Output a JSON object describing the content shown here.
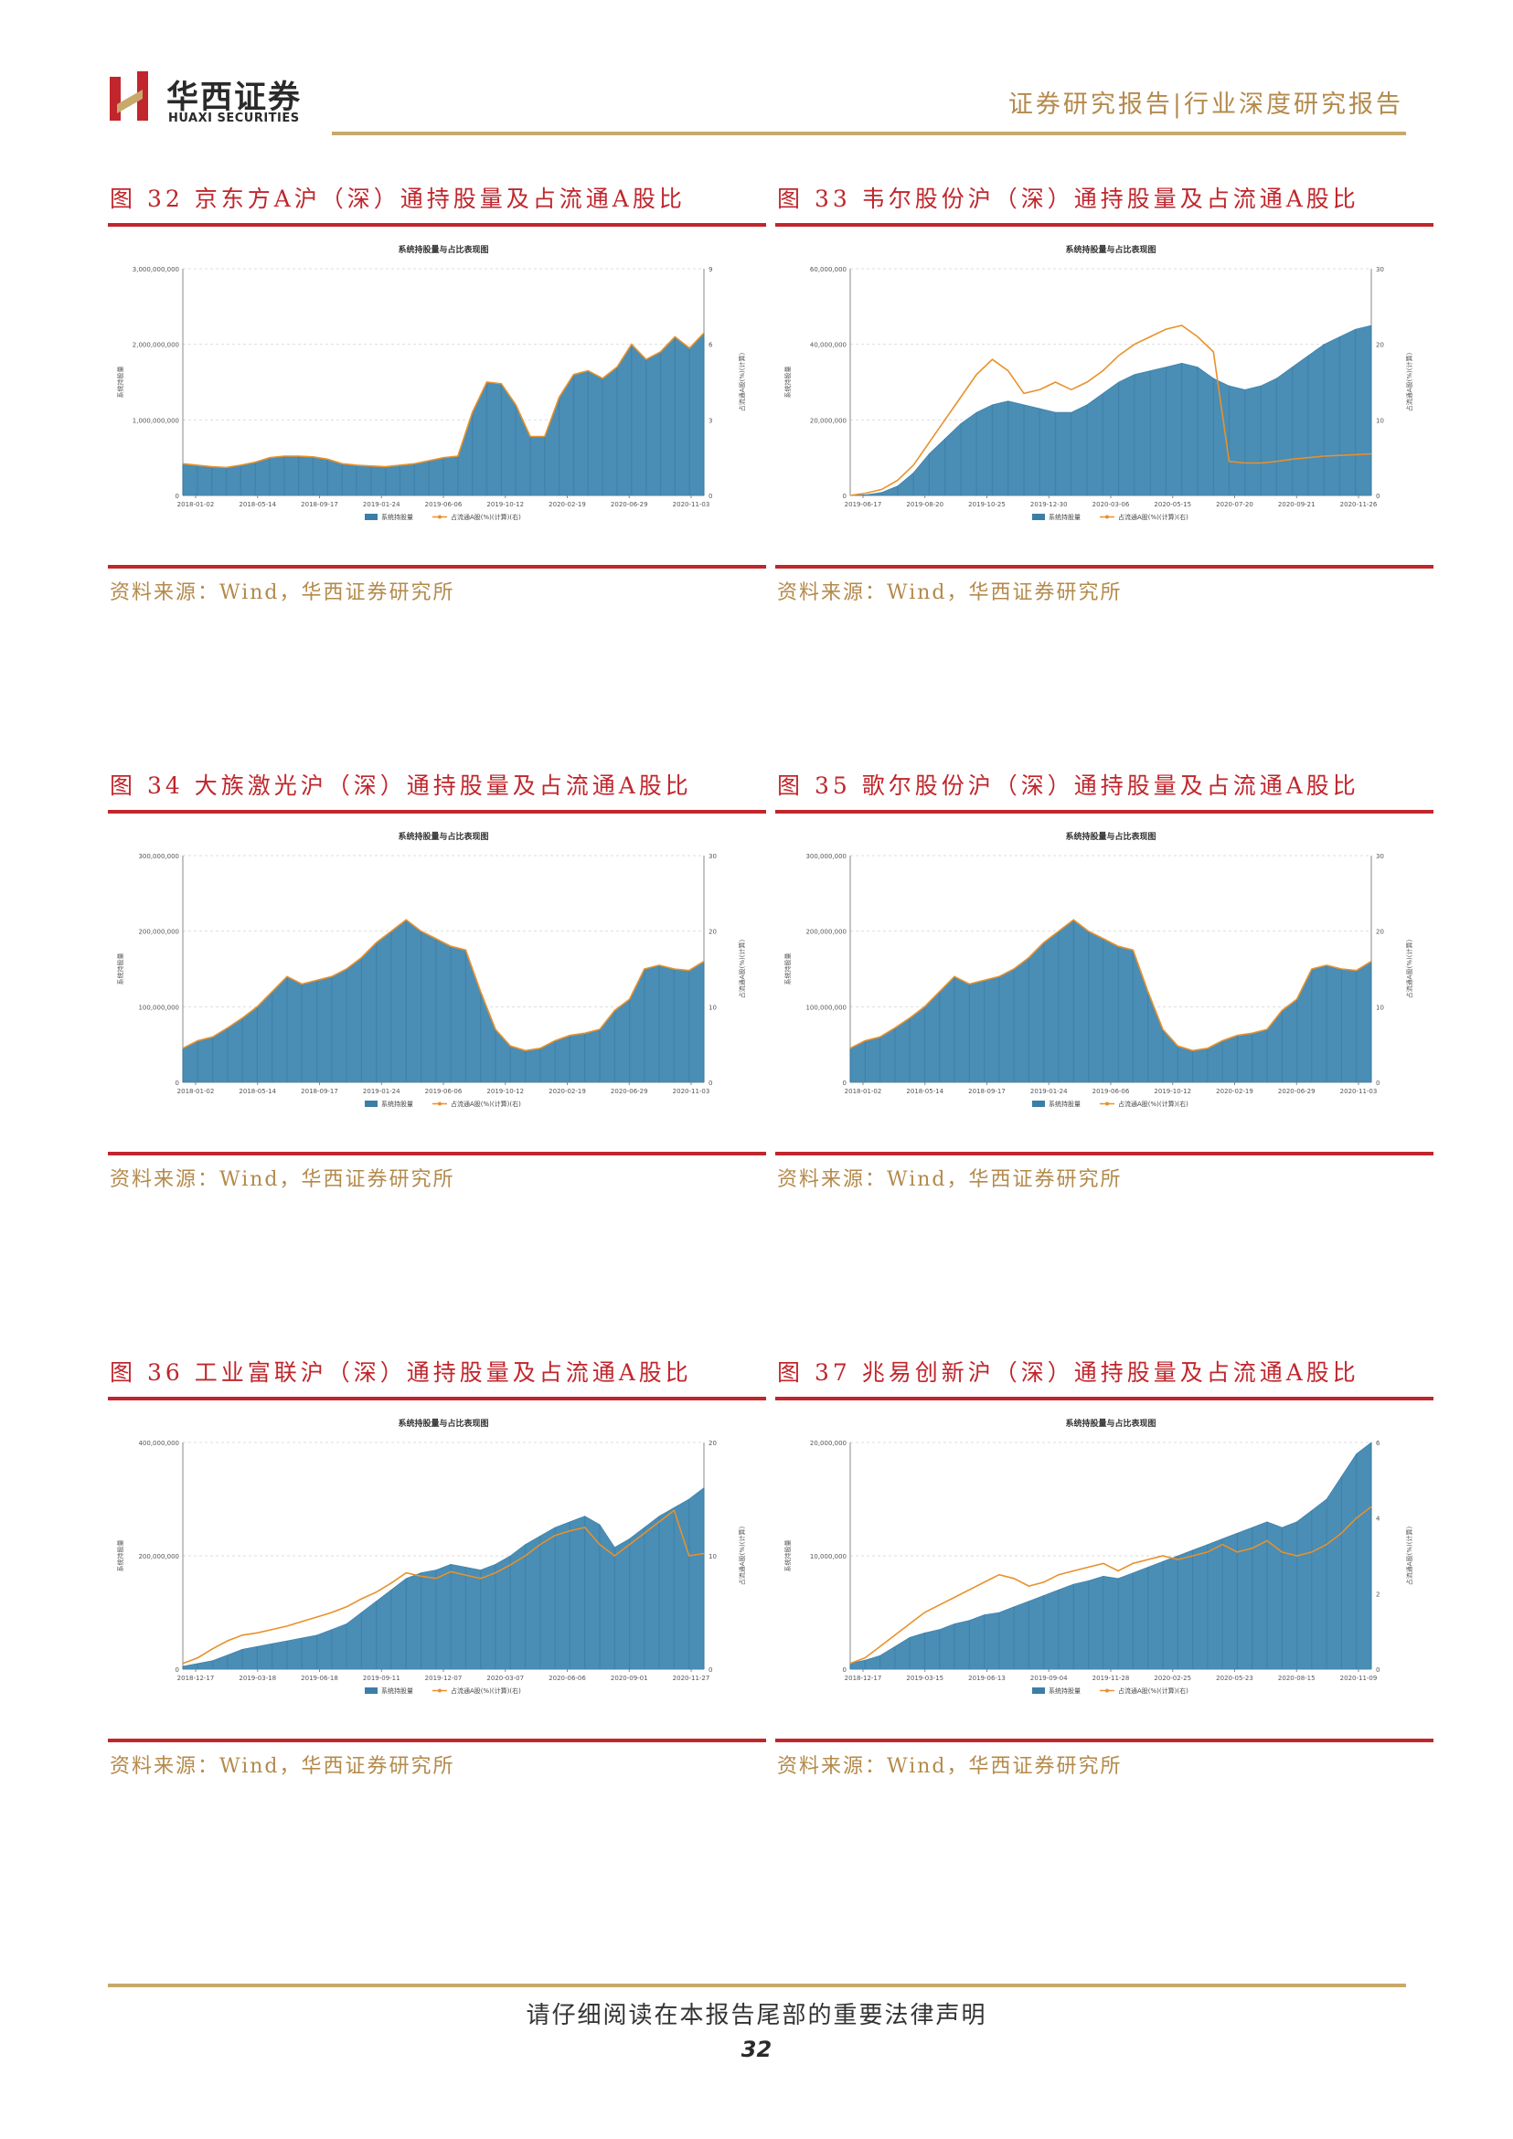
{
  "header": {
    "brand_cn": "华西证券",
    "brand_en": "HUAXI SECURITIES",
    "report_type": "证券研究报告|行业深度研究报告",
    "accent": "#c0262c",
    "gold": "#c8a96b"
  },
  "figures": [
    {
      "title": "图 32  京东方A沪（深）通持股量及占流通A股比",
      "source": "资料来源：Wind，华西证券研究所",
      "chart_data": {
        "type": "area+line",
        "title": "系统持股量与占比表现图",
        "left_axis_label": "系统持股量",
        "right_axis_label": "占流通A股(%)(计算)",
        "left_ticks": [
          "0",
          "1,000,000,000",
          "2,000,000,000",
          "3,000,000,000"
        ],
        "left_max": 3000000000,
        "right_ticks": [
          "0",
          "3",
          "6",
          "9"
        ],
        "right_max": 9,
        "x_ticks": [
          "2018-01-02",
          "2018-05-14",
          "2018-09-17",
          "2019-01-24",
          "2019-06-06",
          "2019-10-12",
          "2020-02-19",
          "2020-06-29",
          "2020-11-03"
        ],
        "legend": [
          "系统持股量",
          "占流通A股(%)(计算)(右)"
        ],
        "series": [
          {
            "name": "系统持股量",
            "values": [
              420000000,
              400000000,
              380000000,
              370000000,
              400000000,
              440000000,
              500000000,
              520000000,
              520000000,
              510000000,
              480000000,
              420000000,
              400000000,
              390000000,
              380000000,
              400000000,
              420000000,
              460000000,
              500000000,
              520000000,
              1100000000,
              1500000000,
              1480000000,
              1200000000,
              780000000,
              780000000,
              1300000000,
              1600000000,
              1650000000,
              1550000000,
              1700000000,
              2000000000,
              1800000000,
              1900000000,
              2100000000,
              1950000000,
              2150000000
            ]
          },
          {
            "name": "占流通A股(%)(计算)(右)",
            "values": [
              1.26,
              1.2,
              1.14,
              1.11,
              1.2,
              1.32,
              1.5,
              1.56,
              1.56,
              1.53,
              1.44,
              1.26,
              1.2,
              1.17,
              1.14,
              1.2,
              1.26,
              1.38,
              1.5,
              1.56,
              3.3,
              4.5,
              4.44,
              3.6,
              2.34,
              2.34,
              3.9,
              4.8,
              4.95,
              4.65,
              5.1,
              6.0,
              5.4,
              5.7,
              6.3,
              5.85,
              6.45
            ]
          }
        ]
      }
    },
    {
      "title": "图 33  韦尔股份沪（深）通持股量及占流通A股比",
      "source": "资料来源：Wind，华西证券研究所",
      "chart_data": {
        "type": "area+line",
        "title": "系统持股量与占比表现图",
        "left_axis_label": "系统持股量",
        "right_axis_label": "占流通A股(%)(计算)",
        "left_ticks": [
          "0",
          "20,000,000",
          "40,000,000",
          "60,000,000"
        ],
        "left_max": 60000000,
        "right_ticks": [
          "0",
          "10",
          "20",
          "30"
        ],
        "right_max": 30,
        "x_ticks": [
          "2019-06-17",
          "2019-08-20",
          "2019-10-25",
          "2019-12-30",
          "2020-03-06",
          "2020-05-15",
          "2020-07-20",
          "2020-09-21",
          "2020-11-26"
        ],
        "legend": [
          "系统持股量",
          "占流通A股(%)(计算)(右)"
        ],
        "series": [
          {
            "name": "系统持股量",
            "values": [
              0,
              200000,
              800000,
              2500000,
              6000000,
              11000000,
              15000000,
              19000000,
              22000000,
              24000000,
              25000000,
              24000000,
              23000000,
              22000000,
              22000000,
              24000000,
              27000000,
              30000000,
              32000000,
              33000000,
              34000000,
              35000000,
              34000000,
              31000000,
              29000000,
              28000000,
              29000000,
              31000000,
              34000000,
              37000000,
              40000000,
              42000000,
              44000000,
              45000000
            ]
          },
          {
            "name": "占流通A股(%)(计算)(右)",
            "values": [
              0,
              0.3,
              0.8,
              2.0,
              4.0,
              7.0,
              10.0,
              13.0,
              16.0,
              18.0,
              16.5,
              13.5,
              14.0,
              15.0,
              14.0,
              15.0,
              16.5,
              18.5,
              20.0,
              21.0,
              22.0,
              22.5,
              21.0,
              19.0,
              4.5,
              4.3,
              4.3,
              4.5,
              4.8,
              5.0,
              5.2,
              5.3,
              5.4,
              5.5
            ]
          }
        ]
      }
    },
    {
      "title": "图 34  大族激光沪（深）通持股量及占流通A股比",
      "source": "资料来源：Wind，华西证券研究所",
      "chart_data": {
        "type": "area+line",
        "title": "系统持股量与占比表现图",
        "left_axis_label": "系统持股量",
        "right_axis_label": "占流通A股(%)(计算)",
        "left_ticks": [
          "0",
          "100,000,000",
          "200,000,000",
          "300,000,000"
        ],
        "left_max": 300000000,
        "right_ticks": [
          "0",
          "10",
          "20",
          "30"
        ],
        "right_max": 30,
        "x_ticks": [
          "2018-01-02",
          "2018-05-14",
          "2018-09-17",
          "2019-01-24",
          "2019-06-06",
          "2019-10-12",
          "2020-02-19",
          "2020-06-29",
          "2020-11-03"
        ],
        "legend": [
          "系统持股量",
          "占流通A股(%)(计算)(右)"
        ],
        "series": [
          {
            "name": "系统持股量",
            "values": [
              45000000,
              55000000,
              60000000,
              72000000,
              85000000,
              100000000,
              120000000,
              140000000,
              130000000,
              135000000,
              140000000,
              150000000,
              165000000,
              185000000,
              200000000,
              215000000,
              200000000,
              190000000,
              180000000,
              175000000,
              120000000,
              70000000,
              48000000,
              42000000,
              45000000,
              55000000,
              62000000,
              65000000,
              70000000,
              95000000,
              110000000,
              150000000,
              155000000,
              150000000,
              148000000,
              160000000
            ]
          },
          {
            "name": "占流通A股(%)(计算)(右)",
            "values": [
              4.5,
              5.5,
              6.0,
              7.2,
              8.5,
              10.0,
              12.0,
              14.0,
              13.0,
              13.5,
              14.0,
              15.0,
              16.5,
              18.5,
              20.0,
              21.5,
              20.0,
              19.0,
              18.0,
              17.5,
              12.0,
              7.0,
              4.8,
              4.2,
              4.5,
              5.5,
              6.2,
              6.5,
              7.0,
              9.5,
              11.0,
              15.0,
              15.5,
              15.0,
              14.8,
              16.0
            ]
          }
        ]
      }
    },
    {
      "title": "图 35  歌尔股份沪（深）通持股量及占流通A股比",
      "source": "资料来源：Wind，华西证券研究所",
      "chart_data": {
        "type": "area+line",
        "title": "系统持股量与占比表现图",
        "left_axis_label": "系统持股量",
        "right_axis_label": "占流通A股(%)(计算)",
        "left_ticks": [
          "0",
          "100,000,000",
          "200,000,000",
          "300,000,000"
        ],
        "left_max": 300000000,
        "right_ticks": [
          "0",
          "10",
          "20",
          "30"
        ],
        "right_max": 30,
        "x_ticks": [
          "2018-01-02",
          "2018-05-14",
          "2018-09-17",
          "2019-01-24",
          "2019-06-06",
          "2019-10-12",
          "2020-02-19",
          "2020-06-29",
          "2020-11-03"
        ],
        "legend": [
          "系统持股量",
          "占流通A股(%)(计算)(右)"
        ],
        "series": [
          {
            "name": "系统持股量",
            "values": [
              45000000,
              55000000,
              60000000,
              72000000,
              85000000,
              100000000,
              120000000,
              140000000,
              130000000,
              135000000,
              140000000,
              150000000,
              165000000,
              185000000,
              200000000,
              215000000,
              200000000,
              190000000,
              180000000,
              175000000,
              120000000,
              70000000,
              48000000,
              42000000,
              45000000,
              55000000,
              62000000,
              65000000,
              70000000,
              95000000,
              110000000,
              150000000,
              155000000,
              150000000,
              148000000,
              160000000
            ]
          },
          {
            "name": "占流通A股(%)(计算)(右)",
            "values": [
              4.5,
              5.5,
              6.0,
              7.2,
              8.5,
              10.0,
              12.0,
              14.0,
              13.0,
              13.5,
              14.0,
              15.0,
              16.5,
              18.5,
              20.0,
              21.5,
              20.0,
              19.0,
              18.0,
              17.5,
              12.0,
              7.0,
              4.8,
              4.2,
              4.5,
              5.5,
              6.2,
              6.5,
              7.0,
              9.5,
              11.0,
              15.0,
              15.5,
              15.0,
              14.8,
              16.0
            ]
          }
        ]
      }
    },
    {
      "title": "图 36  工业富联沪（深）通持股量及占流通A股比",
      "source": "资料来源：Wind，华西证券研究所",
      "chart_data": {
        "type": "area+line",
        "title": "系统持股量与占比表现图",
        "left_axis_label": "系统持股量",
        "right_axis_label": "占流通A股(%)(计算)",
        "left_ticks": [
          "0",
          "200,000,000",
          "400,000,000"
        ],
        "left_max": 400000000,
        "right_ticks": [
          "0",
          "10",
          "20"
        ],
        "right_max": 20,
        "x_ticks": [
          "2018-12-17",
          "2019-03-18",
          "2019-06-18",
          "2019-09-11",
          "2019-12-07",
          "2020-03-07",
          "2020-06-06",
          "2020-09-01",
          "2020-11-27"
        ],
        "legend": [
          "系统持股量",
          "占流通A股(%)(计算)(右)"
        ],
        "series": [
          {
            "name": "系统持股量",
            "values": [
              5000000,
              10000000,
              15000000,
              25000000,
              35000000,
              40000000,
              45000000,
              50000000,
              55000000,
              60000000,
              70000000,
              80000000,
              100000000,
              120000000,
              140000000,
              160000000,
              170000000,
              175000000,
              185000000,
              180000000,
              175000000,
              185000000,
              200000000,
              220000000,
              235000000,
              250000000,
              260000000,
              270000000,
              255000000,
              215000000,
              230000000,
              250000000,
              270000000,
              285000000,
              300000000,
              320000000
            ]
          },
          {
            "name": "占流通A股(%)(计算)(右)",
            "values": [
              0.5,
              1.0,
              1.8,
              2.5,
              3.0,
              3.2,
              3.5,
              3.8,
              4.2,
              4.6,
              5.0,
              5.5,
              6.2,
              6.8,
              7.6,
              8.5,
              8.2,
              8.0,
              8.6,
              8.3,
              8.0,
              8.5,
              9.2,
              10.0,
              11.0,
              11.8,
              12.2,
              12.5,
              11.0,
              10.0,
              11.0,
              12.0,
              13.0,
              14.0,
              10.0,
              10.2
            ]
          }
        ]
      }
    },
    {
      "title": "图 37  兆易创新沪（深）通持股量及占流通A股比",
      "source": "资料来源：Wind，华西证券研究所",
      "chart_data": {
        "type": "area+line",
        "title": "系统持股量与占比表现图",
        "left_axis_label": "系统持股量",
        "right_axis_label": "占流通A股(%)(计算)",
        "left_ticks": [
          "0",
          "10,000,000",
          "20,000,000"
        ],
        "left_max": 20000000,
        "right_ticks": [
          "0",
          "2",
          "4",
          "6"
        ],
        "right_max": 6,
        "x_ticks": [
          "2018-12-17",
          "2019-03-15",
          "2019-06-13",
          "2019-09-04",
          "2019-11-28",
          "2020-02-25",
          "2020-05-23",
          "2020-08-15",
          "2020-11-09"
        ],
        "legend": [
          "系统持股量",
          "占流通A股(%)(计算)(右)"
        ],
        "series": [
          {
            "name": "系统持股量",
            "values": [
              500000,
              800000,
              1200000,
              2000000,
              2800000,
              3200000,
              3500000,
              4000000,
              4300000,
              4800000,
              5000000,
              5500000,
              6000000,
              6500000,
              7000000,
              7500000,
              7800000,
              8200000,
              8000000,
              8500000,
              9000000,
              9500000,
              10000000,
              10500000,
              11000000,
              11500000,
              12000000,
              12500000,
              13000000,
              12500000,
              13000000,
              14000000,
              15000000,
              17000000,
              19000000,
              20000000
            ]
          },
          {
            "name": "占流通A股(%)(计算)(右)",
            "values": [
              0.15,
              0.3,
              0.6,
              0.9,
              1.2,
              1.5,
              1.7,
              1.9,
              2.1,
              2.3,
              2.5,
              2.4,
              2.2,
              2.3,
              2.5,
              2.6,
              2.7,
              2.8,
              2.6,
              2.8,
              2.9,
              3.0,
              2.9,
              3.0,
              3.1,
              3.3,
              3.1,
              3.2,
              3.4,
              3.1,
              3.0,
              3.1,
              3.3,
              3.6,
              4.0,
              4.3
            ]
          }
        ]
      }
    }
  ],
  "footer": {
    "disclaimer": "请仔细阅读在本报告尾部的重要法律声明",
    "page_number": "32"
  }
}
